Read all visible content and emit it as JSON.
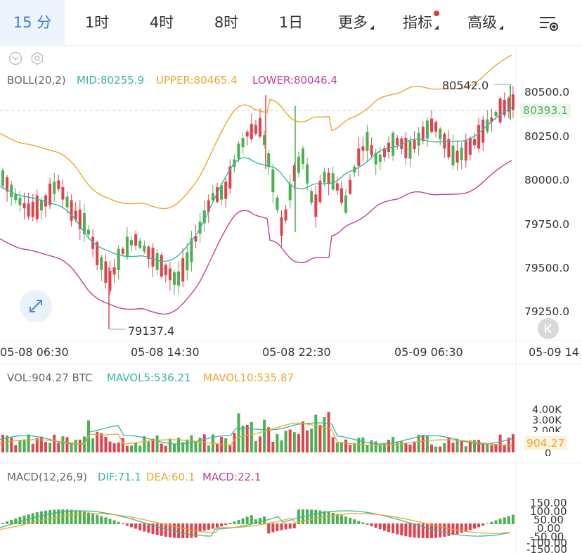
{
  "tabs": [
    {
      "label": "15 分",
      "active": true
    },
    {
      "label": "1时"
    },
    {
      "label": "4时"
    },
    {
      "label": "8时"
    },
    {
      "label": "1日"
    },
    {
      "label": "更多",
      "dropdown": true
    },
    {
      "label": "指标",
      "dropdown": true,
      "badge": true
    },
    {
      "label": "高级",
      "dropdown": true
    }
  ],
  "settings_icon": "chart-settings-icon",
  "boll": {
    "title": "BOLL(20,2)",
    "mid": "MID:80255.9",
    "upper": "UPPER:80465.4",
    "lower": "LOWER:80046.4"
  },
  "price_axis": [
    "80500.0",
    "80250.0",
    "80000.0",
    "79750.0",
    "79500.0",
    "79250.0"
  ],
  "current_price": "80393.1",
  "high_label": "80542.0",
  "low_label": "79137.4",
  "time_axis": [
    "05-08 06:30",
    "05-08 14:30",
    "05-08 22:30",
    "05-09 06:30",
    "05-09 14"
  ],
  "vol": {
    "title": "VOL:904.27 BTC",
    "mavol5": "MAVOL5:536.21",
    "mavol10": "MAVOL10:535.87"
  },
  "vol_axis": [
    "4.00K",
    "3.00K",
    "2.00K",
    "0"
  ],
  "vol_current": "904.27",
  "macd": {
    "title": "MACD(12,26,9)",
    "dif": "DIF:71.1",
    "dea": "DEA:60.1",
    "macd": "MACD:22.1"
  },
  "macd_axis": [
    "150.00",
    "100.00",
    "50.00",
    "0.00",
    "-50.00",
    "-100.00",
    "-150.00"
  ],
  "colors": {
    "up": "#4caf50",
    "down": "#e0424e",
    "mid": "#39b5a0",
    "upper": "#e8a82b",
    "lower": "#c2408f",
    "accent": "#3a7fd5"
  }
}
